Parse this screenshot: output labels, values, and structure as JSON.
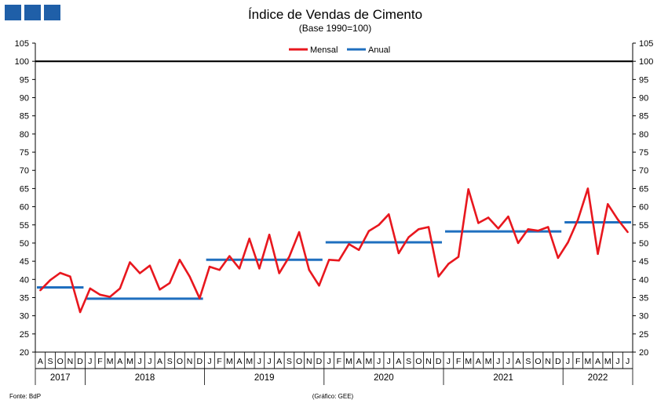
{
  "header": {
    "logo_color": "#1f5fa8",
    "title": "Índice de Vendas de Cimento",
    "subtitle": "(Base 1990=100)"
  },
  "footer": {
    "source": "Fonte: BdP",
    "credit": "(Gráfico: GEE)"
  },
  "colors": {
    "monthly": "#e8171e",
    "annual": "#1f6fbf",
    "reference": "#000000"
  },
  "chart_data": {
    "type": "line",
    "title": "Índice de Vendas de Cimento",
    "subtitle": "(Base 1990=100)",
    "ylim": [
      20,
      105
    ],
    "yticks": [
      20,
      25,
      30,
      35,
      40,
      45,
      50,
      55,
      60,
      65,
      70,
      75,
      80,
      85,
      90,
      95,
      100,
      105
    ],
    "y_axis_both_sides": true,
    "reference_line": 100,
    "legend_position": "top-center",
    "month_labels": [
      "A",
      "S",
      "O",
      "N",
      "D",
      "J",
      "F",
      "M",
      "A",
      "M",
      "J",
      "J",
      "A",
      "S",
      "O",
      "N",
      "D",
      "J",
      "F",
      "M",
      "A",
      "M",
      "J",
      "J",
      "A",
      "S",
      "O",
      "N",
      "D",
      "J",
      "F",
      "M",
      "A",
      "M",
      "J",
      "J",
      "A",
      "S",
      "O",
      "N",
      "D",
      "J",
      "F",
      "M",
      "A",
      "M",
      "J",
      "J",
      "A",
      "S",
      "O",
      "N",
      "D",
      "J",
      "F",
      "M",
      "A",
      "M",
      "J",
      "J"
    ],
    "years": [
      {
        "label": "2017",
        "first": 0,
        "last": 4
      },
      {
        "label": "2018",
        "first": 5,
        "last": 16
      },
      {
        "label": "2019",
        "first": 17,
        "last": 28
      },
      {
        "label": "2020",
        "first": 29,
        "last": 40
      },
      {
        "label": "2021",
        "first": 41,
        "last": 52
      },
      {
        "label": "2022",
        "first": 53,
        "last": 59
      }
    ],
    "series": [
      {
        "name": "Mensal",
        "values": [
          37,
          39.8,
          41.8,
          40.8,
          31,
          37.5,
          35.8,
          35.2,
          37.5,
          44.7,
          41.7,
          43.8,
          37.2,
          39,
          45.4,
          40.8,
          34.8,
          43.5,
          42.6,
          46.4,
          43,
          51.2,
          43,
          52.3,
          41.7,
          46.2,
          53,
          42.6,
          38.3,
          45.4,
          45.2,
          49.7,
          48.1,
          53.3,
          55,
          57.9,
          47.2,
          51.6,
          53.8,
          54.4,
          40.8,
          44.3,
          46.2,
          64.8,
          55.5,
          57,
          54,
          57.3,
          50,
          53.8,
          53.4,
          54.4,
          45.9,
          50.2,
          56.4,
          65,
          47,
          60.7,
          56.5,
          53
        ]
      },
      {
        "name": "Anual",
        "segments": [
          {
            "first": 0,
            "last": 4,
            "value": 37.8
          },
          {
            "first": 5,
            "last": 16,
            "value": 34.7
          },
          {
            "first": 17,
            "last": 28,
            "value": 45.4
          },
          {
            "first": 29,
            "last": 40,
            "value": 50.2
          },
          {
            "first": 41,
            "last": 52,
            "value": 53.2
          },
          {
            "first": 53,
            "last": 59,
            "value": 55.7
          }
        ]
      }
    ]
  }
}
